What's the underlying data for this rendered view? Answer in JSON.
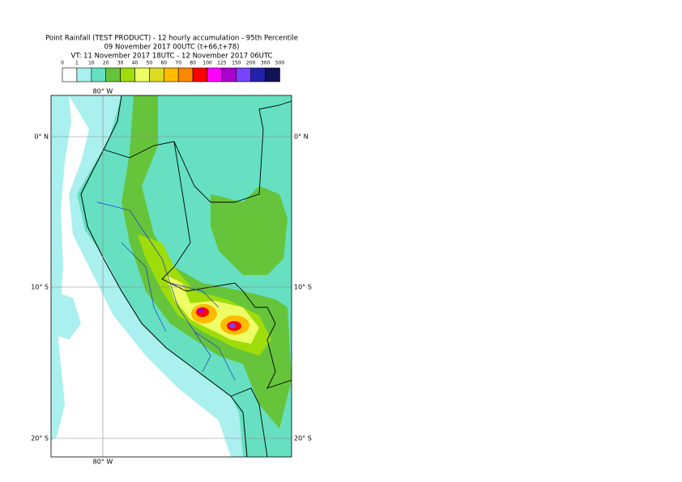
{
  "header": {
    "title": "Point Rainfall (TEST PRODUCT) - 12 hourly accumulation - 95th Percentile",
    "subtitle": "09 November 2017 00UTC (t+66,t+78)",
    "valid_time": "VT: 11 November 2017 18UTC - 12 November 2017 06UTC"
  },
  "legend": {
    "bounds": [
      0,
      1,
      10,
      20,
      30,
      40,
      50,
      60,
      70,
      80,
      100,
      125,
      150,
      200,
      300,
      500
    ],
    "colors": [
      "#ffffff",
      "#aaf0ee",
      "#66e0c0",
      "#66c43a",
      "#9edc0a",
      "#eeff66",
      "#dcdc22",
      "#ffbb00",
      "#ff8800",
      "#ff0000",
      "#ff00ff",
      "#aa00cc",
      "#7744ff",
      "#2222aa",
      "#111155"
    ]
  },
  "map": {
    "lon_labels": [
      "80° W"
    ],
    "lat_labels": [
      "0° N",
      "10° S",
      "20° S"
    ]
  }
}
